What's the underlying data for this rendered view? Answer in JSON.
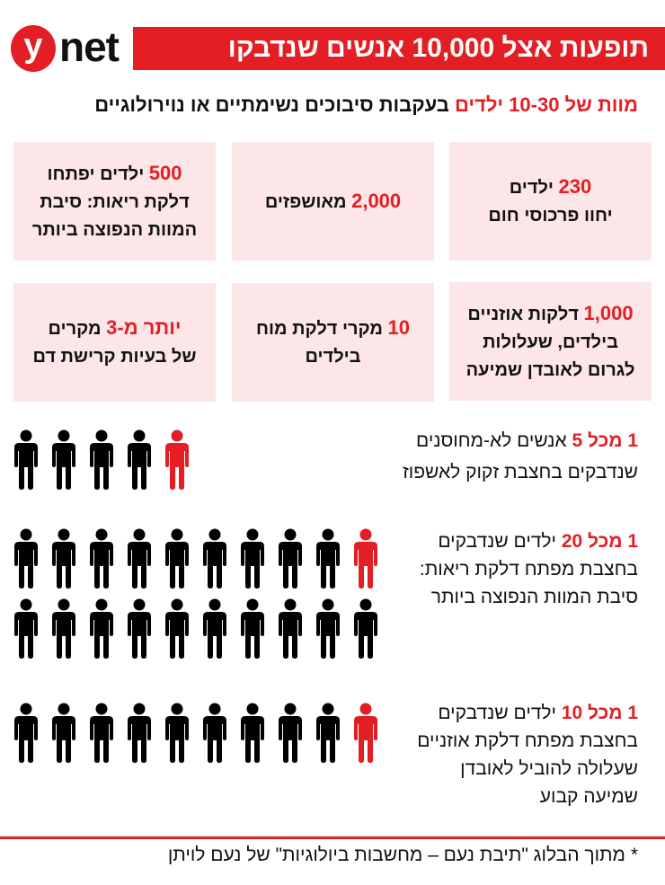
{
  "header": {
    "logo_letter": "y",
    "logo_word": "net",
    "title": "תופעות אצל 10,000 אנשים שנדבקו בחצבת"
  },
  "subtitle": {
    "highlight": "מוות של 10-30 ילדים",
    "rest": " בעקבות סיבוכים נשימתיים או נוירולוגיים"
  },
  "boxes": [
    {
      "num": "230",
      "text_after_num": " ילדים",
      "line2": "יחוו פרכוסי חום",
      "line3": ""
    },
    {
      "num": "2,000",
      "text_after_num": " מאושפזים",
      "line2": "",
      "line3": ""
    },
    {
      "num": "500",
      "text_after_num": " ילדים יפתחו",
      "line2": "דלקת ריאות: סיבת",
      "line3": "המוות הנפוצה ביותר"
    },
    {
      "num": "1,000",
      "text_after_num": " דלקות אוזניים",
      "line2": "בילדים, שעלולות",
      "line3": "לגרום לאובדן שמיעה"
    },
    {
      "num": "10",
      "text_after_num": " מקרי דלקת מוח",
      "line2": "בילדים",
      "line3": ""
    },
    {
      "num": "יותר מ-3",
      "text_after_num": " מקרים",
      "line2": "של בעיות קרישת דם",
      "line3": ""
    }
  ],
  "stats": [
    {
      "highlight": "1 מכל 5",
      "line1_rest": " אנשים לא-מחוסנים",
      "lines": [
        "שנדבקים בחצבת זקוק לאשפוז"
      ],
      "total_icons": 5,
      "red_icons": 1
    },
    {
      "highlight": "1 מכל 20",
      "line1_rest": " ילדים שנדבקים",
      "lines": [
        "בחצבת מפתח דלקת ריאות:",
        "סיבת המוות הנפוצה ביותר"
      ],
      "total_icons": 20,
      "red_icons": 1
    },
    {
      "highlight": "1 מכל 10",
      "line1_rest": " ילדים שנדבקים",
      "lines": [
        "בחצבת מפתח דלקת אוזניים",
        "שעלולה להוביל לאובדן",
        "שמיעה קבוע"
      ],
      "total_icons": 10,
      "red_icons": 1
    }
  ],
  "footer": {
    "text": "* מתוך הבלוג \"תיבת נעם – מחשבות ביולוגיות\" של נעם לויתן"
  },
  "colors": {
    "accent_red": "#e31e24",
    "box_pink": "#fce6e7",
    "icon_black": "#000000"
  }
}
